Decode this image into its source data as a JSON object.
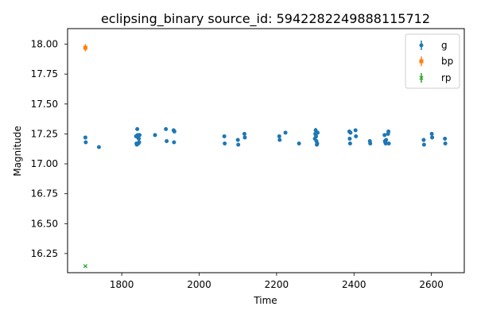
{
  "chart_data": {
    "type": "scatter",
    "title": "eclipsing_binary source_id: 5942282249888115712",
    "xlabel": "Time",
    "ylabel": "Magnitude",
    "xlim": [
      1660,
      2685
    ],
    "ylim": [
      16.09,
      18.13
    ],
    "xticks": [
      "1800",
      "2000",
      "2200",
      "2400",
      "2600"
    ],
    "yticks": [
      "16.25",
      "16.50",
      "16.75",
      "17.00",
      "17.25",
      "17.50",
      "17.75",
      "18.00"
    ],
    "grid": false,
    "legend_position": "top-right",
    "series": [
      {
        "name": "g",
        "color": "#1f77b4",
        "marker": "circle",
        "points": [
          {
            "x": 1706,
            "y": 17.22
          },
          {
            "x": 1707,
            "y": 17.18
          },
          {
            "x": 1741,
            "y": 17.14
          },
          {
            "x": 1837,
            "y": 17.23
          },
          {
            "x": 1838,
            "y": 17.17
          },
          {
            "x": 1839,
            "y": 17.16
          },
          {
            "x": 1840,
            "y": 17.29
          },
          {
            "x": 1841,
            "y": 17.24
          },
          {
            "x": 1842,
            "y": 17.22
          },
          {
            "x": 1843,
            "y": 17.17
          },
          {
            "x": 1844,
            "y": 17.21
          },
          {
            "x": 1845,
            "y": 17.18
          },
          {
            "x": 1846,
            "y": 17.24
          },
          {
            "x": 1886,
            "y": 17.24
          },
          {
            "x": 1914,
            "y": 17.29
          },
          {
            "x": 1916,
            "y": 17.19
          },
          {
            "x": 1934,
            "y": 17.28
          },
          {
            "x": 1935,
            "y": 17.18
          },
          {
            "x": 1936,
            "y": 17.27
          },
          {
            "x": 2065,
            "y": 17.23
          },
          {
            "x": 2066,
            "y": 17.17
          },
          {
            "x": 2100,
            "y": 17.2
          },
          {
            "x": 2101,
            "y": 17.16
          },
          {
            "x": 2117,
            "y": 17.25
          },
          {
            "x": 2118,
            "y": 17.22
          },
          {
            "x": 2207,
            "y": 17.23
          },
          {
            "x": 2208,
            "y": 17.2
          },
          {
            "x": 2223,
            "y": 17.26
          },
          {
            "x": 2258,
            "y": 17.17
          },
          {
            "x": 2299,
            "y": 17.21
          },
          {
            "x": 2300,
            "y": 17.25,
            "err": 0.02
          },
          {
            "x": 2301,
            "y": 17.28,
            "err": 0.02
          },
          {
            "x": 2302,
            "y": 17.23
          },
          {
            "x": 2303,
            "y": 17.19
          },
          {
            "x": 2304,
            "y": 17.16
          },
          {
            "x": 2305,
            "y": 17.17
          },
          {
            "x": 2306,
            "y": 17.26
          },
          {
            "x": 2388,
            "y": 17.27
          },
          {
            "x": 2389,
            "y": 17.21
          },
          {
            "x": 2390,
            "y": 17.17
          },
          {
            "x": 2391,
            "y": 17.26
          },
          {
            "x": 2404,
            "y": 17.28
          },
          {
            "x": 2405,
            "y": 17.23
          },
          {
            "x": 2441,
            "y": 17.19
          },
          {
            "x": 2442,
            "y": 17.17
          },
          {
            "x": 2479,
            "y": 17.24
          },
          {
            "x": 2480,
            "y": 17.19
          },
          {
            "x": 2481,
            "y": 17.18
          },
          {
            "x": 2482,
            "y": 17.17
          },
          {
            "x": 2483,
            "y": 17.2
          },
          {
            "x": 2488,
            "y": 17.25
          },
          {
            "x": 2489,
            "y": 17.27
          },
          {
            "x": 2490,
            "y": 17.17
          },
          {
            "x": 2580,
            "y": 17.2
          },
          {
            "x": 2581,
            "y": 17.16
          },
          {
            "x": 2601,
            "y": 17.25
          },
          {
            "x": 2602,
            "y": 17.22
          },
          {
            "x": 2635,
            "y": 17.21
          },
          {
            "x": 2636,
            "y": 17.17
          }
        ]
      },
      {
        "name": "bp",
        "color": "#ff7f0e",
        "marker": "square",
        "points": [
          {
            "x": 1706,
            "y": 17.97,
            "err": 0.03
          }
        ]
      },
      {
        "name": "rp",
        "color": "#2ca02c",
        "marker": "x",
        "points": [
          {
            "x": 1706,
            "y": 16.145,
            "err": 0.006
          }
        ]
      }
    ]
  }
}
